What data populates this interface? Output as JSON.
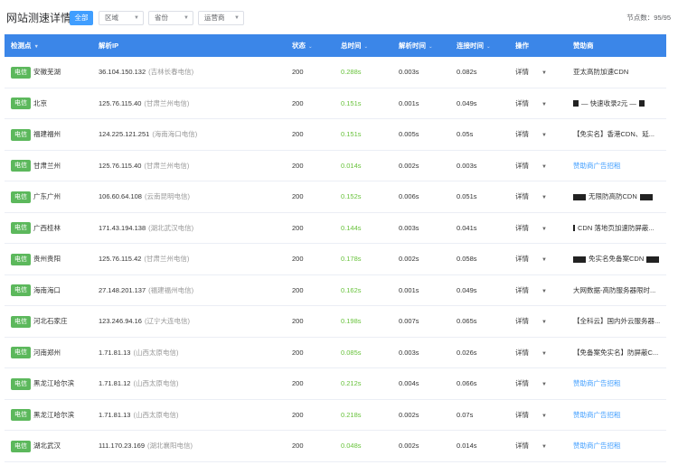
{
  "header": {
    "title": "网站测速详情",
    "all_button": "全部",
    "filters": [
      {
        "label": "区域"
      },
      {
        "label": "省份"
      },
      {
        "label": "运营商"
      }
    ],
    "node_count": "节点数：95/95"
  },
  "table": {
    "columns": {
      "node": "检测点",
      "ip": "解析IP",
      "status": "状态",
      "total": "总时间",
      "resolve": "解析时间",
      "connect": "连接时间",
      "action": "操作",
      "sponsor": "赞助商"
    },
    "action_label": "详情",
    "rows": [
      {
        "carrier": "电信",
        "location": "安徽芜湖",
        "ip": "36.104.150.132",
        "ip_loc": "(吉林长春电信)",
        "status": "200",
        "total": "0.288s",
        "resolve": "0.003s",
        "connect": "0.082s",
        "sponsor": "亚太高防加速CDN",
        "sponsor_link": false
      },
      {
        "carrier": "电信",
        "location": "北京",
        "ip": "125.76.115.40",
        "ip_loc": "(甘肃兰州电信)",
        "status": "200",
        "total": "0.151s",
        "resolve": "0.001s",
        "connect": "0.049s",
        "sponsor": "— 快速收录2元 —",
        "sponsor_link": false
      },
      {
        "carrier": "电信",
        "location": "福建福州",
        "ip": "124.225.121.251",
        "ip_loc": "(海南海口电信)",
        "status": "200",
        "total": "0.151s",
        "resolve": "0.005s",
        "connect": "0.05s",
        "sponsor": "【免实名】香港CDN、延...",
        "sponsor_link": false
      },
      {
        "carrier": "电信",
        "location": "甘肃兰州",
        "ip": "125.76.115.40",
        "ip_loc": "(甘肃兰州电信)",
        "status": "200",
        "total": "0.014s",
        "resolve": "0.002s",
        "connect": "0.003s",
        "sponsor": "赞助商广告招租",
        "sponsor_link": true
      },
      {
        "carrier": "电信",
        "location": "广东广州",
        "ip": "106.60.64.108",
        "ip_loc": "(云南昆明电信)",
        "status": "200",
        "total": "0.152s",
        "resolve": "0.006s",
        "connect": "0.051s",
        "sponsor": "无限防高防CDN",
        "sponsor_link": false
      },
      {
        "carrier": "电信",
        "location": "广西桂林",
        "ip": "171.43.194.138",
        "ip_loc": "(湖北武汉电信)",
        "status": "200",
        "total": "0.144s",
        "resolve": "0.003s",
        "connect": "0.041s",
        "sponsor": "CDN 落地页加速防屏蔽...",
        "sponsor_link": false
      },
      {
        "carrier": "电信",
        "location": "贵州贵阳",
        "ip": "125.76.115.42",
        "ip_loc": "(甘肃兰州电信)",
        "status": "200",
        "total": "0.178s",
        "resolve": "0.002s",
        "connect": "0.058s",
        "sponsor": "免实名免备案CDN",
        "sponsor_link": false
      },
      {
        "carrier": "电信",
        "location": "海南海口",
        "ip": "27.148.201.137",
        "ip_loc": "(福建福州电信)",
        "status": "200",
        "total": "0.162s",
        "resolve": "0.001s",
        "connect": "0.049s",
        "sponsor": "大网数据-高防服务器限时...",
        "sponsor_link": false
      },
      {
        "carrier": "电信",
        "location": "河北石家庄",
        "ip": "123.246.94.16",
        "ip_loc": "(辽宁大连电信)",
        "status": "200",
        "total": "0.198s",
        "resolve": "0.007s",
        "connect": "0.065s",
        "sponsor": "【全科云】国内外云服务器...",
        "sponsor_link": false
      },
      {
        "carrier": "电信",
        "location": "河南郑州",
        "ip": "1.71.81.13",
        "ip_loc": "(山西太原电信)",
        "status": "200",
        "total": "0.085s",
        "resolve": "0.003s",
        "connect": "0.026s",
        "sponsor": "【免备案免实名】防屏蔽C...",
        "sponsor_link": false
      },
      {
        "carrier": "电信",
        "location": "黑龙江哈尔滨",
        "ip": "1.71.81.12",
        "ip_loc": "(山西太原电信)",
        "status": "200",
        "total": "0.212s",
        "resolve": "0.004s",
        "connect": "0.066s",
        "sponsor": "赞助商广告招租",
        "sponsor_link": true
      },
      {
        "carrier": "电信",
        "location": "黑龙江哈尔滨",
        "ip": "1.71.81.13",
        "ip_loc": "(山西太原电信)",
        "status": "200",
        "total": "0.218s",
        "resolve": "0.002s",
        "connect": "0.07s",
        "sponsor": "赞助商广告招租",
        "sponsor_link": true
      },
      {
        "carrier": "电信",
        "location": "湖北武汉",
        "ip": "111.170.23.169",
        "ip_loc": "(湖北襄阳电信)",
        "status": "200",
        "total": "0.048s",
        "resolve": "0.002s",
        "connect": "0.014s",
        "sponsor": "赞助商广告招租",
        "sponsor_link": true
      }
    ]
  },
  "colors": {
    "accent": "#409eff",
    "header_bg": "#3b86e8",
    "carrier_tag": "#5cb85c",
    "total_time": "#67c23a"
  }
}
